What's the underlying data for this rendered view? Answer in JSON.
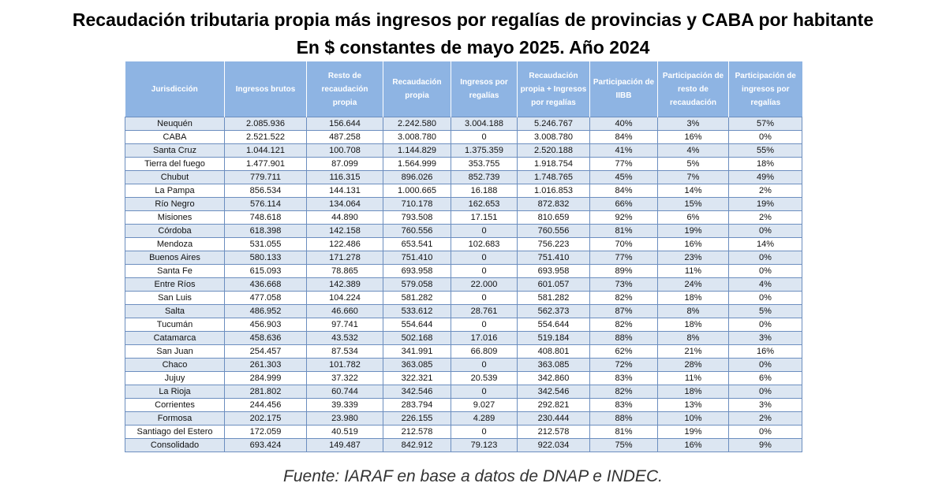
{
  "title_line1": "Recaudación tributaria propia más ingresos por regalías de provincias y CABA por habitante",
  "title_line2": "En $ constantes de mayo 2025. Año 2024",
  "columns": [
    "Jurisdicción",
    "Ingresos brutos",
    "Resto de recaudación propia",
    "Recaudación propia",
    "Ingresos por regalías",
    "Recaudación propia + Ingresos por regalías",
    "Participación de IIBB",
    "Participación de resto de recaudación",
    "Participación de ingresos por regalías"
  ],
  "rows": [
    [
      "Neuquén",
      "2.085.936",
      "156.644",
      "2.242.580",
      "3.004.188",
      "5.246.767",
      "40%",
      "3%",
      "57%"
    ],
    [
      "CABA",
      "2.521.522",
      "487.258",
      "3.008.780",
      "0",
      "3.008.780",
      "84%",
      "16%",
      "0%"
    ],
    [
      "Santa Cruz",
      "1.044.121",
      "100.708",
      "1.144.829",
      "1.375.359",
      "2.520.188",
      "41%",
      "4%",
      "55%"
    ],
    [
      "Tierra del fuego",
      "1.477.901",
      "87.099",
      "1.564.999",
      "353.755",
      "1.918.754",
      "77%",
      "5%",
      "18%"
    ],
    [
      "Chubut",
      "779.711",
      "116.315",
      "896.026",
      "852.739",
      "1.748.765",
      "45%",
      "7%",
      "49%"
    ],
    [
      "La Pampa",
      "856.534",
      "144.131",
      "1.000.665",
      "16.188",
      "1.016.853",
      "84%",
      "14%",
      "2%"
    ],
    [
      "Río Negro",
      "576.114",
      "134.064",
      "710.178",
      "162.653",
      "872.832",
      "66%",
      "15%",
      "19%"
    ],
    [
      "Misiones",
      "748.618",
      "44.890",
      "793.508",
      "17.151",
      "810.659",
      "92%",
      "6%",
      "2%"
    ],
    [
      "Córdoba",
      "618.398",
      "142.158",
      "760.556",
      "0",
      "760.556",
      "81%",
      "19%",
      "0%"
    ],
    [
      "Mendoza",
      "531.055",
      "122.486",
      "653.541",
      "102.683",
      "756.223",
      "70%",
      "16%",
      "14%"
    ],
    [
      "Buenos Aires",
      "580.133",
      "171.278",
      "751.410",
      "0",
      "751.410",
      "77%",
      "23%",
      "0%"
    ],
    [
      "Santa Fe",
      "615.093",
      "78.865",
      "693.958",
      "0",
      "693.958",
      "89%",
      "11%",
      "0%"
    ],
    [
      "Entre Ríos",
      "436.668",
      "142.389",
      "579.058",
      "22.000",
      "601.057",
      "73%",
      "24%",
      "4%"
    ],
    [
      "San Luis",
      "477.058",
      "104.224",
      "581.282",
      "0",
      "581.282",
      "82%",
      "18%",
      "0%"
    ],
    [
      "Salta",
      "486.952",
      "46.660",
      "533.612",
      "28.761",
      "562.373",
      "87%",
      "8%",
      "5%"
    ],
    [
      "Tucumán",
      "456.903",
      "97.741",
      "554.644",
      "0",
      "554.644",
      "82%",
      "18%",
      "0%"
    ],
    [
      "Catamarca",
      "458.636",
      "43.532",
      "502.168",
      "17.016",
      "519.184",
      "88%",
      "8%",
      "3%"
    ],
    [
      "San Juan",
      "254.457",
      "87.534",
      "341.991",
      "66.809",
      "408.801",
      "62%",
      "21%",
      "16%"
    ],
    [
      "Chaco",
      "261.303",
      "101.782",
      "363.085",
      "0",
      "363.085",
      "72%",
      "28%",
      "0%"
    ],
    [
      "Jujuy",
      "284.999",
      "37.322",
      "322.321",
      "20.539",
      "342.860",
      "83%",
      "11%",
      "6%"
    ],
    [
      "La Rioja",
      "281.802",
      "60.744",
      "342.546",
      "0",
      "342.546",
      "82%",
      "18%",
      "0%"
    ],
    [
      "Corrientes",
      "244.456",
      "39.339",
      "283.794",
      "9.027",
      "292.821",
      "83%",
      "13%",
      "3%"
    ],
    [
      "Formosa",
      "202.175",
      "23.980",
      "226.155",
      "4.289",
      "230.444",
      "88%",
      "10%",
      "2%"
    ],
    [
      "Santiago del Estero",
      "172.059",
      "40.519",
      "212.578",
      "0",
      "212.578",
      "81%",
      "19%",
      "0%"
    ],
    [
      "Consolidado",
      "693.424",
      "149.487",
      "842.912",
      "79.123",
      "922.034",
      "75%",
      "16%",
      "9%"
    ]
  ],
  "source": "Fuente: IARAF en base a datos de DNAP e INDEC."
}
